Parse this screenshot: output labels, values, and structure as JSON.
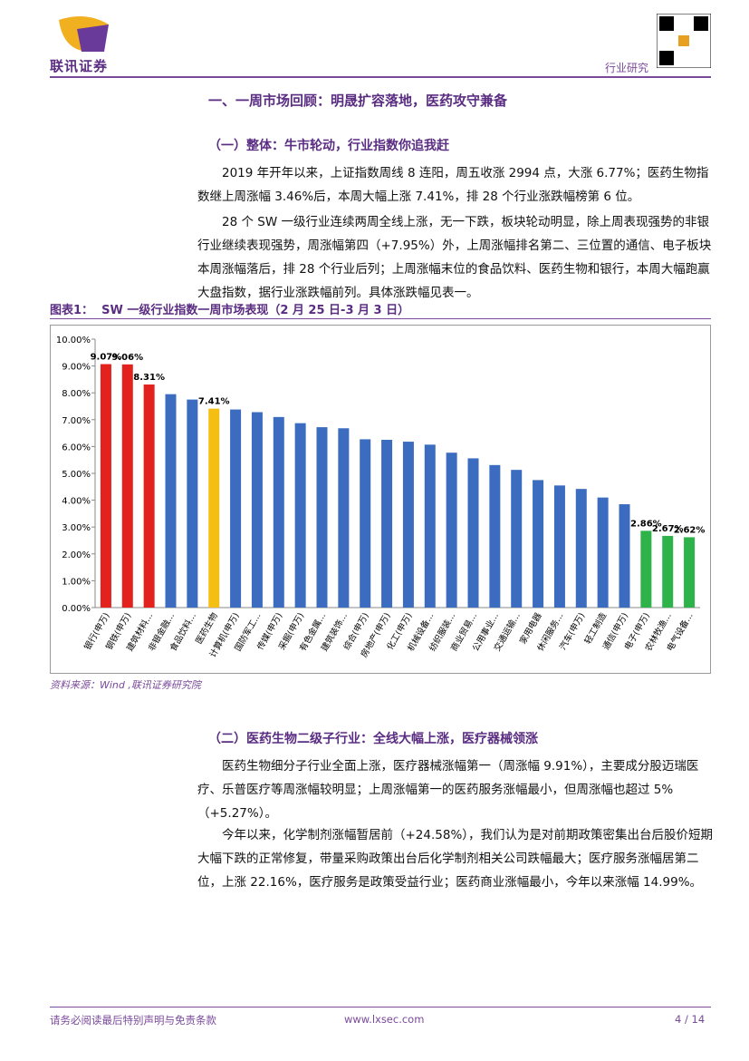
{
  "header": {
    "logo": "联讯证券",
    "tag": "行业研究"
  },
  "section_title": "一、一周市场回顾：明晟扩容落地，医药攻守兼备",
  "sub1": {
    "title": "（一）整体：牛市轮动，行业指数你追我赶",
    "paragraphs": [
      "2019 年开年以来，上证指数周线 8 连阳，周五收涨 2994 点，大涨 6.77%；医药生物指数继上周涨幅 3.46%后，本周大幅上涨 7.41%，排 28 个行业涨跌幅榜第 6 位。",
      "28 个 SW 一级行业连续两周全线上涨，无一下跌，板块轮动明显，除上周表现强势的非银行业继续表现强势，周涨幅第四（+7.95%）外，上周涨幅排名第二、三位置的通信、电子板块本周涨幅落后，排 28 个行业后列；上周涨幅末位的食品饮料、医药生物和银行，本周大幅跑赢大盘指数，据行业涨跌幅前列。具体涨跌幅见表一。"
    ]
  },
  "figure": {
    "label": "图表1：",
    "title": "SW 一级行业指数一周市场表现（2 月 25 日-3 月 3 日）",
    "source": "资料来源：Wind ,联讯证券研究院"
  },
  "chart_data": {
    "type": "bar",
    "categories": [
      "银行(申万)",
      "钢铁(申万)",
      "建筑材料...",
      "非银金融...",
      "食品饮料...",
      "医药生物",
      "计算机(申万)",
      "国防军工...",
      "传媒(申万)",
      "采掘(申万)",
      "有色金属...",
      "建筑装饰...",
      "综合(申万)",
      "房地产(申万)",
      "化工(申万)",
      "机械设备...",
      "纺织服装...",
      "商业贸易...",
      "公用事业...",
      "交通运输...",
      "家用电器",
      "休闲服务...",
      "汽车(申万)",
      "轻工制造",
      "通信(申万)",
      "电子(申万)",
      "农林牧渔...",
      "电气设备..."
    ],
    "values": [
      9.07,
      9.06,
      8.31,
      7.95,
      7.75,
      7.41,
      7.38,
      7.28,
      7.1,
      6.87,
      6.72,
      6.68,
      6.27,
      6.25,
      6.18,
      6.07,
      5.77,
      5.56,
      5.31,
      5.13,
      4.75,
      4.55,
      4.42,
      4.1,
      3.85,
      2.86,
      2.67,
      2.62
    ],
    "value_labels": [
      "9.07%",
      "9.06%",
      "8.31%",
      null,
      null,
      "7.41%",
      null,
      null,
      null,
      null,
      null,
      null,
      null,
      null,
      null,
      null,
      null,
      null,
      null,
      null,
      null,
      null,
      null,
      null,
      null,
      "2.86%",
      "2.67%",
      "2.62%"
    ],
    "colors": [
      "#e4221d",
      "#e4221d",
      "#e4221d",
      "#3b6cc0",
      "#3b6cc0",
      "#f4be12",
      "#3b6cc0",
      "#3b6cc0",
      "#3b6cc0",
      "#3b6cc0",
      "#3b6cc0",
      "#3b6cc0",
      "#3b6cc0",
      "#3b6cc0",
      "#3b6cc0",
      "#3b6cc0",
      "#3b6cc0",
      "#3b6cc0",
      "#3b6cc0",
      "#3b6cc0",
      "#3b6cc0",
      "#3b6cc0",
      "#3b6cc0",
      "#3b6cc0",
      "#3b6cc0",
      "#2db34a",
      "#2db34a",
      "#2db34a"
    ],
    "ylim": [
      0,
      10
    ],
    "yticks": [
      {
        "value": 0,
        "label": "0.00%"
      },
      {
        "value": 1,
        "label": "1.00%"
      },
      {
        "value": 2,
        "label": "2.00%"
      },
      {
        "value": 3,
        "label": "3.00%"
      },
      {
        "value": 4,
        "label": "4.00%"
      },
      {
        "value": 5,
        "label": "5.00%"
      },
      {
        "value": 6,
        "label": "6.00%"
      },
      {
        "value": 7,
        "label": "7.00%"
      },
      {
        "value": 8,
        "label": "8.00%"
      },
      {
        "value": 9,
        "label": "9.00%"
      },
      {
        "value": 10,
        "label": "10.00%"
      }
    ]
  },
  "sub2": {
    "title": "（二）医药生物二级子行业：全线大幅上涨，医疗器械领涨",
    "paragraphs": [
      "医药生物细分子行业全面上涨，医疗器械涨幅第一（周涨幅 9.91%），主要成分股迈瑞医疗、乐普医疗等周涨幅较明显；上周涨幅第一的医药服务涨幅最小，但周涨幅也超过 5%（+5.27%）。",
      "今年以来，化学制剂涨幅暂居前（+24.58%），我们认为是对前期政策密集出台后股价短期大幅下跌的正常修复，带量采购政策出台后化学制剂相关公司跌幅最大；医疗服务涨幅居第二位，上涨 22.16%，医疗服务是政策受益行业；医药商业涨幅最小，今年以来涨幅 14.99%。"
    ]
  },
  "footer": {
    "disclaimer": "请务必阅读最后特别声明与免责条款",
    "website": "www.lxsec.com",
    "page": "4 / 14"
  }
}
